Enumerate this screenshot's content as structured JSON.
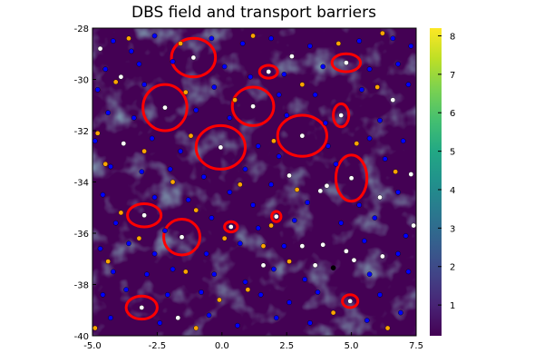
{
  "chart_data": {
    "type": "heatmap",
    "title": "DBS field and transport barriers",
    "xlabel": "",
    "ylabel": "",
    "xlim": [
      -5.0,
      7.5
    ],
    "ylim": [
      -40,
      -28
    ],
    "xticks": [
      -5.0,
      -2.5,
      0.0,
      2.5,
      5.0,
      7.5
    ],
    "xtick_labels": [
      "-5.0",
      "-2.5",
      "0.0",
      "2.5",
      "5.0",
      "7.5"
    ],
    "yticks": [
      -40,
      -38,
      -36,
      -34,
      -32,
      -30,
      -28
    ],
    "ytick_labels": [
      "-40",
      "-38",
      "-36",
      "-34",
      "-32",
      "-30",
      "-28"
    ],
    "colorbar": {
      "colormap": "viridis",
      "range": [
        0.2,
        8.2
      ],
      "ticks": [
        1,
        2,
        3,
        4,
        5,
        6,
        7,
        8
      ],
      "tick_labels": [
        "1",
        "2",
        "3",
        "4",
        "5",
        "6",
        "7",
        "8"
      ]
    },
    "grid": false,
    "legend": "none",
    "colors": {
      "barrier": "#ff0000",
      "vortex_center": "#ffffff",
      "blue_marker": "#0000ff",
      "orange_marker": "#ffa500",
      "black_marker": "#000000",
      "field_low": "#440154"
    },
    "barriers": [
      {
        "cx": -1.1,
        "cy": -29.15,
        "rx": 0.85,
        "ry": 0.75
      },
      {
        "cx": 1.8,
        "cy": -29.7,
        "rx": 0.35,
        "ry": 0.25
      },
      {
        "cx": 4.8,
        "cy": -29.35,
        "rx": 0.55,
        "ry": 0.35
      },
      {
        "cx": -2.2,
        "cy": -31.1,
        "rx": 0.85,
        "ry": 0.9
      },
      {
        "cx": 1.2,
        "cy": -31.05,
        "rx": 0.8,
        "ry": 0.75
      },
      {
        "cx": 4.6,
        "cy": -31.4,
        "rx": 0.3,
        "ry": 0.45
      },
      {
        "cx": 3.1,
        "cy": -32.2,
        "rx": 0.95,
        "ry": 0.8
      },
      {
        "cx": -0.05,
        "cy": -32.65,
        "rx": 0.95,
        "ry": 0.85
      },
      {
        "cx": 5.0,
        "cy": -33.85,
        "rx": 0.6,
        "ry": 0.9
      },
      {
        "cx": -3.0,
        "cy": -35.3,
        "rx": 0.65,
        "ry": 0.45
      },
      {
        "cx": -1.55,
        "cy": -36.15,
        "rx": 0.7,
        "ry": 0.7
      },
      {
        "cx": 0.35,
        "cy": -35.75,
        "rx": 0.25,
        "ry": 0.2
      },
      {
        "cx": 2.1,
        "cy": -35.35,
        "rx": 0.18,
        "ry": 0.2
      },
      {
        "cx": -3.1,
        "cy": -38.9,
        "rx": 0.6,
        "ry": 0.45
      },
      {
        "cx": 4.95,
        "cy": -38.65,
        "rx": 0.3,
        "ry": 0.25
      }
    ],
    "vortex_centers": [
      [
        -1.1,
        -29.15
      ],
      [
        1.8,
        -29.7
      ],
      [
        4.8,
        -29.35
      ],
      [
        -2.2,
        -31.1
      ],
      [
        1.2,
        -31.05
      ],
      [
        4.6,
        -31.4
      ],
      [
        3.1,
        -32.2
      ],
      [
        -0.05,
        -32.65
      ],
      [
        5.0,
        -33.85
      ],
      [
        -3.0,
        -35.3
      ],
      [
        -1.55,
        -36.15
      ],
      [
        0.35,
        -35.75
      ],
      [
        2.1,
        -35.35
      ],
      [
        -3.1,
        -38.9
      ],
      [
        4.95,
        -38.65
      ],
      [
        -4.7,
        -28.8
      ],
      [
        -3.9,
        -29.9
      ],
      [
        2.7,
        -29.1
      ],
      [
        6.6,
        -30.8
      ],
      [
        -3.8,
        -32.5
      ],
      [
        7.3,
        -33.7
      ],
      [
        2.6,
        -33.75
      ],
      [
        3.8,
        -34.35
      ],
      [
        4.05,
        -34.15
      ],
      [
        6.1,
        -34.6
      ],
      [
        7.4,
        -35.7
      ],
      [
        3.1,
        -36.5
      ],
      [
        3.9,
        -36.45
      ],
      [
        4.8,
        -36.7
      ],
      [
        3.6,
        -37.25
      ],
      [
        5.1,
        -37.05
      ],
      [
        6.2,
        -36.9
      ],
      [
        1.6,
        -37.25
      ],
      [
        -1.7,
        -39.3
      ]
    ],
    "blue_markers": [
      [
        -4.2,
        -28.5
      ],
      [
        -3.5,
        -28.9
      ],
      [
        -2.6,
        -28.3
      ],
      [
        -0.4,
        -28.4
      ],
      [
        0.8,
        -28.6
      ],
      [
        1.9,
        -28.4
      ],
      [
        3.4,
        -28.7
      ],
      [
        5.3,
        -28.5
      ],
      [
        6.6,
        -28.4
      ],
      [
        7.3,
        -28.7
      ],
      [
        -4.5,
        -29.6
      ],
      [
        -3.2,
        -29.4
      ],
      [
        -1.9,
        -29.3
      ],
      [
        0.1,
        -29.5
      ],
      [
        1.1,
        -29.9
      ],
      [
        2.4,
        -29.8
      ],
      [
        3.9,
        -29.5
      ],
      [
        5.7,
        -29.6
      ],
      [
        6.8,
        -29.4
      ],
      [
        -4.8,
        -30.4
      ],
      [
        -3.0,
        -30.2
      ],
      [
        -0.3,
        -30.3
      ],
      [
        2.2,
        -30.6
      ],
      [
        3.6,
        -30.6
      ],
      [
        5.4,
        -30.4
      ],
      [
        7.2,
        -30.2
      ],
      [
        -4.4,
        -31.3
      ],
      [
        -3.4,
        -31.5
      ],
      [
        -1.0,
        -31.2
      ],
      [
        0.3,
        -31.5
      ],
      [
        2.5,
        -31.4
      ],
      [
        4.0,
        -31.7
      ],
      [
        6.1,
        -31.6
      ],
      [
        -4.9,
        -32.4
      ],
      [
        -2.7,
        -32.3
      ],
      [
        -1.6,
        -32.8
      ],
      [
        1.4,
        -32.6
      ],
      [
        2.2,
        -33.0
      ],
      [
        4.1,
        -32.6
      ],
      [
        5.7,
        -32.3
      ],
      [
        7.0,
        -32.4
      ],
      [
        -4.3,
        -33.4
      ],
      [
        -3.1,
        -33.6
      ],
      [
        -2.0,
        -33.5
      ],
      [
        -0.7,
        -33.8
      ],
      [
        0.9,
        -33.5
      ],
      [
        1.9,
        -34.1
      ],
      [
        4.4,
        -33.3
      ],
      [
        6.3,
        -33.1
      ],
      [
        -4.6,
        -34.5
      ],
      [
        -2.6,
        -34.6
      ],
      [
        -1.3,
        -34.7
      ],
      [
        0.3,
        -34.4
      ],
      [
        1.2,
        -34.9
      ],
      [
        3.3,
        -34.8
      ],
      [
        5.3,
        -34.9
      ],
      [
        6.8,
        -34.4
      ],
      [
        -4.1,
        -35.6
      ],
      [
        -2.2,
        -35.9
      ],
      [
        -0.4,
        -35.4
      ],
      [
        1.4,
        -35.8
      ],
      [
        2.8,
        -35.5
      ],
      [
        4.6,
        -35.6
      ],
      [
        5.9,
        -35.4
      ],
      [
        7.1,
        -36.1
      ],
      [
        -4.7,
        -36.6
      ],
      [
        -3.6,
        -36.4
      ],
      [
        -2.6,
        -36.8
      ],
      [
        -0.6,
        -36.8
      ],
      [
        0.7,
        -36.4
      ],
      [
        2.4,
        -36.5
      ],
      [
        5.5,
        -36.3
      ],
      [
        6.8,
        -36.8
      ],
      [
        -4.2,
        -37.5
      ],
      [
        -2.9,
        -37.6
      ],
      [
        -1.9,
        -37.4
      ],
      [
        -0.3,
        -37.6
      ],
      [
        0.9,
        -37.9
      ],
      [
        2.0,
        -37.4
      ],
      [
        3.2,
        -37.8
      ],
      [
        5.7,
        -37.6
      ],
      [
        7.2,
        -37.5
      ],
      [
        -4.6,
        -38.4
      ],
      [
        -3.7,
        -38.2
      ],
      [
        -2.1,
        -38.4
      ],
      [
        -0.8,
        -38.3
      ],
      [
        1.5,
        -38.4
      ],
      [
        2.6,
        -38.7
      ],
      [
        3.7,
        -38.3
      ],
      [
        6.1,
        -38.4
      ],
      [
        -4.3,
        -39.3
      ],
      [
        -2.4,
        -39.5
      ],
      [
        -0.5,
        -39.2
      ],
      [
        0.6,
        -39.6
      ],
      [
        2.1,
        -39.3
      ],
      [
        3.4,
        -39.5
      ],
      [
        5.6,
        -39.4
      ],
      [
        6.9,
        -39.1
      ]
    ],
    "orange_markers": [
      [
        -3.6,
        -28.4
      ],
      [
        -1.6,
        -28.6
      ],
      [
        1.2,
        -28.3
      ],
      [
        4.5,
        -28.6
      ],
      [
        6.2,
        -28.2
      ],
      [
        -4.1,
        -30.1
      ],
      [
        -1.4,
        -30.5
      ],
      [
        0.5,
        -30.8
      ],
      [
        3.1,
        -30.2
      ],
      [
        6.0,
        -30.3
      ],
      [
        -4.8,
        -32.1
      ],
      [
        -3.0,
        -32.8
      ],
      [
        -1.2,
        -32.2
      ],
      [
        2.0,
        -32.4
      ],
      [
        5.2,
        -32.5
      ],
      [
        -4.5,
        -33.3
      ],
      [
        -1.9,
        -34.0
      ],
      [
        0.7,
        -34.1
      ],
      [
        2.9,
        -34.3
      ],
      [
        6.7,
        -33.6
      ],
      [
        -3.9,
        -35.2
      ],
      [
        -1.0,
        -35.1
      ],
      [
        1.9,
        -35.7
      ],
      [
        -3.2,
        -36.2
      ],
      [
        0.1,
        -36.2
      ],
      [
        1.6,
        -36.5
      ],
      [
        -4.4,
        -37.1
      ],
      [
        -1.4,
        -37.5
      ],
      [
        2.6,
        -37.1
      ],
      [
        -0.1,
        -38.6
      ],
      [
        1.0,
        -38.2
      ],
      [
        4.3,
        -39.1
      ],
      [
        -4.9,
        -39.7
      ],
      [
        -1.0,
        -39.7
      ],
      [
        6.4,
        -39.7
      ]
    ],
    "black_markers": [
      [
        4.3,
        -37.35
      ]
    ]
  }
}
